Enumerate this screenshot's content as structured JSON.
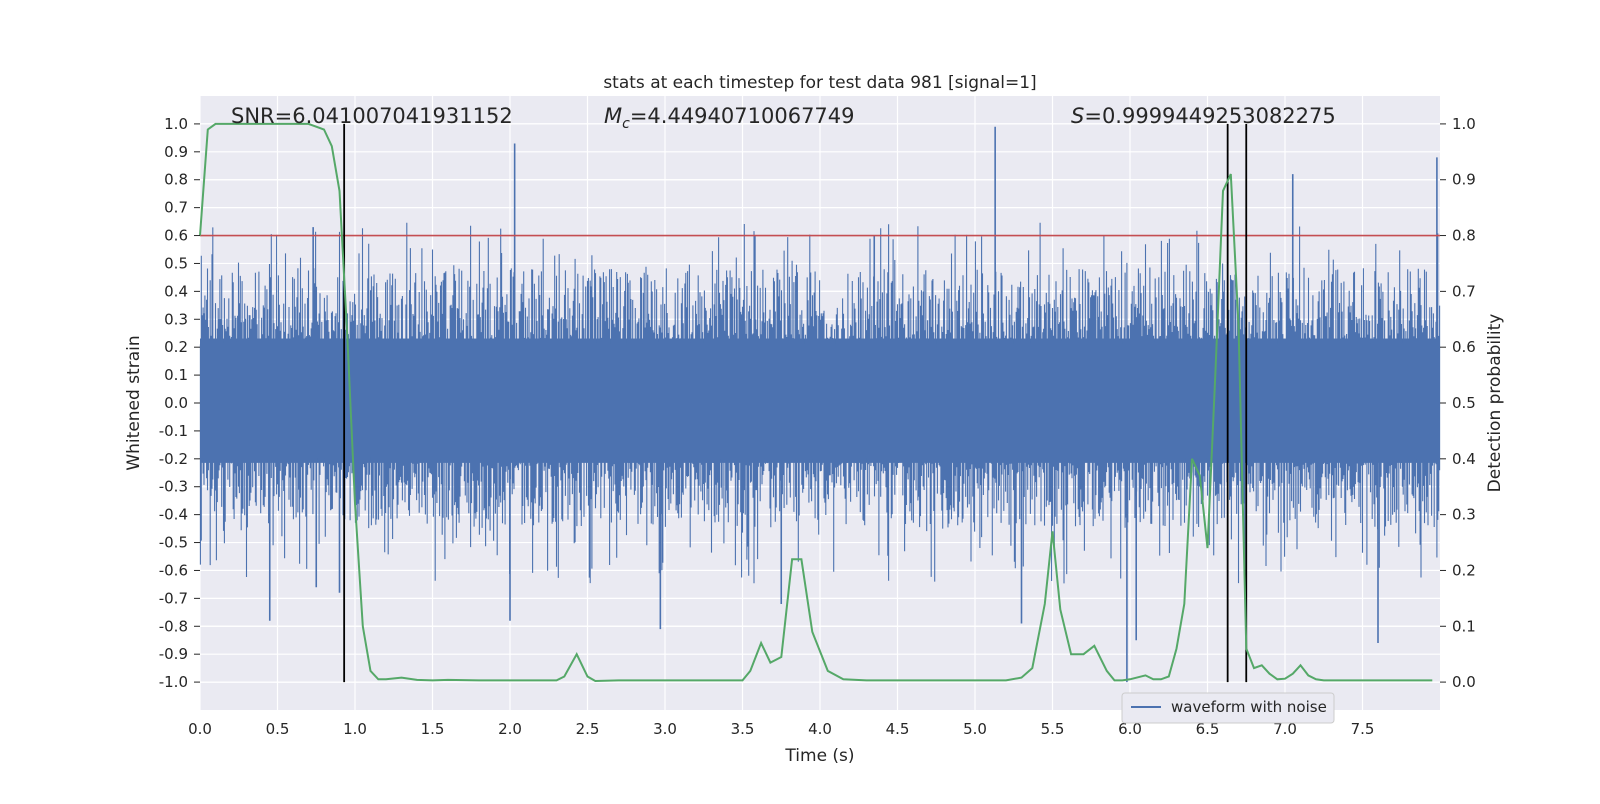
{
  "chart_data": {
    "type": "line",
    "title": "stats at each timestep for test data 981 [signal=1]",
    "xlabel": "Time (s)",
    "ylabel": "Whitened strain",
    "y2label": "Detection probability",
    "xlim": [
      0,
      8
    ],
    "ylim": [
      -1.1,
      1.1
    ],
    "y2lim": [
      -0.05,
      1.05
    ],
    "x_ticks": [
      "0.0",
      "0.5",
      "1.0",
      "1.5",
      "2.0",
      "2.5",
      "3.0",
      "3.5",
      "4.0",
      "4.5",
      "5.0",
      "5.5",
      "6.0",
      "6.5",
      "7.0",
      "7.5"
    ],
    "y_ticks": [
      "1.0",
      "0.9",
      "0.8",
      "0.7",
      "0.6",
      "0.5",
      "0.4",
      "0.3",
      "0.2",
      "0.1",
      "0.0",
      "-0.1",
      "-0.2",
      "-0.3",
      "-0.4",
      "-0.5",
      "-0.6",
      "-0.7",
      "-0.8",
      "-0.9",
      "-1.0"
    ],
    "y2_ticks": [
      "1.0",
      "0.9",
      "0.8",
      "0.7",
      "0.6",
      "0.5",
      "0.4",
      "0.3",
      "0.2",
      "0.1",
      "0.0"
    ],
    "grid": true,
    "legend": {
      "placement": "lower-right",
      "entries": [
        "waveform with noise"
      ]
    },
    "annotations": {
      "snr": "SNR=6.041007041931152",
      "mc_symbol": "M",
      "mc_sub": "c",
      "mc_value": "=4.44940710067749",
      "s_symbol": "S",
      "s_value": "=0.9999449253082275"
    },
    "threshold": 0.6,
    "vlines": [
      0.93,
      6.63,
      6.75
    ],
    "colors": {
      "waveform": "#4c72b0",
      "probability": "#55a868",
      "threshold": "#c44e52",
      "vline": "#000000",
      "axes_bg": "#eaeaf2",
      "grid": "#ffffff"
    },
    "series": [
      {
        "name": "waveform with noise",
        "type": "noise-envelope",
        "envelope_high": 0.42,
        "envelope_low": -0.39,
        "peaks": [
          [
            0.45,
            -0.78
          ],
          [
            0.75,
            -0.66
          ],
          [
            0.73,
            0.63
          ],
          [
            0.9,
            -0.68
          ],
          [
            2.03,
            0.93
          ],
          [
            2.0,
            -0.78
          ],
          [
            2.97,
            -0.81
          ],
          [
            3.58,
            0.6
          ],
          [
            3.75,
            -0.72
          ],
          [
            4.35,
            0.6
          ],
          [
            5.13,
            0.99
          ],
          [
            5.3,
            -0.79
          ],
          [
            5.98,
            -1.0
          ],
          [
            6.04,
            -0.85
          ],
          [
            7.05,
            0.82
          ],
          [
            7.6,
            -0.86
          ],
          [
            7.98,
            0.88
          ]
        ]
      },
      {
        "name": "",
        "axis": "right",
        "x": [
          0.0,
          0.05,
          0.1,
          0.2,
          0.3,
          0.4,
          0.5,
          0.6,
          0.7,
          0.8,
          0.85,
          0.9,
          0.95,
          1.0,
          1.05,
          1.1,
          1.15,
          1.2,
          1.3,
          1.4,
          1.5,
          1.6,
          1.8,
          2.0,
          2.2,
          2.3,
          2.35,
          2.43,
          2.5,
          2.55,
          2.7,
          3.0,
          3.4,
          3.5,
          3.55,
          3.62,
          3.68,
          3.75,
          3.82,
          3.88,
          3.95,
          4.05,
          4.15,
          4.3,
          4.8,
          5.2,
          5.3,
          5.37,
          5.45,
          5.5,
          5.55,
          5.62,
          5.7,
          5.77,
          5.85,
          5.9,
          5.95,
          6.0,
          6.1,
          6.15,
          6.2,
          6.25,
          6.3,
          6.35,
          6.4,
          6.45,
          6.5,
          6.55,
          6.6,
          6.65,
          6.7,
          6.75,
          6.8,
          6.85,
          6.9,
          6.95,
          7.0,
          7.05,
          7.1,
          7.15,
          7.2,
          7.25,
          7.3,
          7.35,
          7.4,
          7.5,
          7.7,
          7.95
        ],
        "values": [
          0.8,
          0.99,
          1.0,
          1.0,
          1.0,
          1.0,
          1.0,
          1.0,
          1.0,
          0.99,
          0.96,
          0.88,
          0.62,
          0.32,
          0.1,
          0.02,
          0.005,
          0.005,
          0.008,
          0.004,
          0.003,
          0.004,
          0.003,
          0.003,
          0.003,
          0.003,
          0.01,
          0.05,
          0.01,
          0.002,
          0.003,
          0.003,
          0.003,
          0.003,
          0.02,
          0.07,
          0.035,
          0.045,
          0.22,
          0.22,
          0.09,
          0.02,
          0.005,
          0.003,
          0.003,
          0.003,
          0.008,
          0.025,
          0.14,
          0.27,
          0.13,
          0.05,
          0.05,
          0.065,
          0.02,
          0.003,
          0.003,
          0.005,
          0.012,
          0.005,
          0.005,
          0.01,
          0.06,
          0.14,
          0.4,
          0.37,
          0.24,
          0.55,
          0.88,
          0.91,
          0.64,
          0.06,
          0.025,
          0.03,
          0.015,
          0.005,
          0.006,
          0.015,
          0.03,
          0.012,
          0.005,
          0.003,
          0.003,
          0.003,
          0.003,
          0.003,
          0.003,
          0.003
        ]
      }
    ]
  }
}
